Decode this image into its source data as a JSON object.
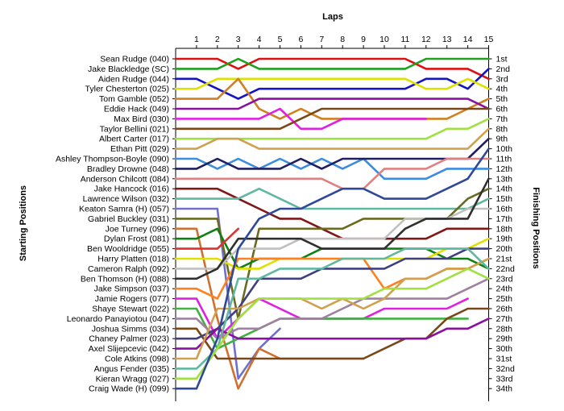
{
  "chart_data": {
    "type": "line",
    "title": "Laps",
    "ylabel_left": "Starting Positions",
    "ylabel_right": "Finishing Positions",
    "laps": [
      1,
      2,
      3,
      4,
      5,
      6,
      7,
      8,
      9,
      10,
      11,
      12,
      13,
      14,
      15
    ],
    "drivers": [
      "Sean Rudge (040)",
      "Jake Blackledge (SC)",
      "Aiden Rudge (044)",
      "Tyler Chesterton (025)",
      "Tom Gamble (052)",
      "Eddie Hack (049)",
      "Max Bird (030)",
      "Taylor Bellini (021)",
      "Albert Carter (017)",
      "Ethan Pitt (029)",
      "Ashley Thompson-Boyle (090)",
      "Bradley Drowne (048)",
      "Anderson Chilcott (084)",
      "Jake Hancock (016)",
      "Lawrence Wilson (032)",
      "Keaton Samra (H) (057)",
      "Gabriel Buckley (031)",
      "Joe Turney (096)",
      "Dylan Frost (081)",
      "Ben Wooldridge (055)",
      "Harry Platten (018)",
      "Cameron Ralph (092)",
      "Ben Thomson (H) (088)",
      "Jake Simpson (037)",
      "Jamie Rogers (077)",
      "Shaye Stewart (022)",
      "Leonardo Panayiotou (047)",
      "Joshua Simms (034)",
      "Chaney Palmer (023)",
      "Axel Slijepcevic (042)",
      "Cole Atkins (098)",
      "Angus Fender (035)",
      "Kieran Wragg (027)",
      "Craig Wade (H) (099)"
    ],
    "finishing_labels": [
      "1st",
      "2nd",
      "3rd",
      "4th",
      "5th",
      "6th",
      "7th",
      "8th",
      "9th",
      "10th",
      "11th",
      "12th",
      "13th",
      "14th",
      "15th",
      "16th",
      "17th",
      "18th",
      "19th",
      "20th",
      "21st",
      "22nd",
      "23rd",
      "24th",
      "25th",
      "26th",
      "27th",
      "28th",
      "29th",
      "30th",
      "31st",
      "32nd",
      "33rd",
      "34th"
    ],
    "series": [
      {
        "start": 1,
        "color": "#dd1010",
        "positions": [
          1,
          1,
          2,
          1,
          1,
          1,
          1,
          1,
          1,
          1,
          1,
          2,
          2,
          2,
          3
        ]
      },
      {
        "start": 2,
        "color": "#20a020",
        "positions": [
          2,
          2,
          1,
          2,
          2,
          2,
          2,
          2,
          2,
          2,
          2,
          1,
          1,
          1,
          1
        ]
      },
      {
        "start": 3,
        "color": "#1515c0",
        "positions": [
          3,
          4,
          5,
          4,
          4,
          4,
          4,
          4,
          4,
          4,
          4,
          3,
          3,
          4,
          2
        ]
      },
      {
        "start": 4,
        "color": "#e0e000",
        "positions": [
          4,
          3,
          3,
          3,
          3,
          3,
          3,
          3,
          3,
          3,
          3,
          4,
          4,
          3,
          4
        ]
      },
      {
        "start": 5,
        "color": "#d08020",
        "positions": [
          5,
          5,
          3,
          6,
          7,
          6,
          7,
          7,
          7,
          7,
          7,
          7,
          7,
          6,
          5
        ]
      },
      {
        "start": 6,
        "color": "#8a10a0",
        "positions": [
          6,
          6,
          6,
          5,
          5,
          5,
          5,
          5,
          5,
          5,
          5,
          5,
          5,
          5,
          6
        ]
      },
      {
        "start": 7,
        "color": "#e020e0",
        "positions": [
          7,
          7,
          7,
          7,
          6,
          8,
          8,
          7,
          7,
          7,
          7,
          7
        ]
      },
      {
        "start": 8,
        "color": "#7a4818",
        "positions": [
          8,
          8,
          8,
          8,
          8,
          7,
          6,
          6,
          6,
          6,
          6,
          6,
          6,
          6,
          6
        ]
      },
      {
        "start": 9,
        "color": "#a0e040",
        "positions": [
          9,
          9,
          9,
          9,
          9,
          9,
          9,
          9,
          9,
          9,
          9,
          9,
          8,
          8,
          7
        ]
      },
      {
        "start": 10,
        "color": "#d0a050",
        "positions": [
          10,
          9,
          9,
          10,
          10,
          10,
          10,
          10,
          10,
          10,
          10,
          10,
          10,
          10,
          8
        ]
      },
      {
        "start": 11,
        "color": "#3c8ce0",
        "positions": [
          11,
          12,
          11,
          12,
          11,
          12,
          11,
          12,
          11,
          13,
          13,
          13,
          12,
          12,
          12
        ]
      },
      {
        "start": 12,
        "color": "#202060",
        "positions": [
          12,
          11,
          12,
          12,
          12,
          11,
          12,
          11,
          11,
          11,
          11,
          11,
          11,
          11,
          9
        ]
      },
      {
        "start": 13,
        "color": "#e08080",
        "positions": [
          13,
          13,
          13,
          13,
          13,
          13,
          13,
          14,
          14,
          12,
          12,
          12,
          11,
          11,
          11
        ]
      },
      {
        "start": 14,
        "color": "#801818",
        "positions": [
          14,
          14,
          15,
          16,
          17,
          17,
          18,
          19,
          19,
          19,
          19,
          19,
          18,
          18,
          18
        ]
      },
      {
        "start": 15,
        "color": "#60b8a0",
        "positions": [
          15,
          15,
          15,
          14,
          15,
          16,
          16,
          16,
          16,
          16,
          16,
          16,
          16,
          16,
          15
        ]
      },
      {
        "start": 16,
        "color": "#7070d0",
        "positions": [
          16,
          16,
          33,
          30,
          28
        ]
      },
      {
        "start": 17,
        "color": "#6a6a20",
        "positions": [
          17,
          17,
          27,
          18,
          18,
          18,
          18,
          18,
          17,
          17,
          17,
          17,
          17,
          15,
          14
        ]
      },
      {
        "start": 18,
        "color": "#d07030",
        "positions": [
          18,
          27,
          34,
          30,
          31,
          31,
          31,
          31,
          31
        ]
      },
      {
        "start": 19,
        "color": "#108010",
        "positions": [
          19,
          18,
          22,
          21,
          21,
          21,
          20,
          20,
          20,
          20,
          20,
          20,
          21,
          21,
          22
        ]
      },
      {
        "start": 20,
        "color": "#e03030",
        "positions": [
          20,
          20,
          18
        ]
      },
      {
        "start": 21,
        "color": "#e0e000",
        "positions": [
          21,
          21,
          22,
          22,
          21,
          21,
          21,
          21,
          21,
          21,
          21,
          21,
          20,
          20,
          19
        ]
      },
      {
        "start": 22,
        "color": "#c0c0c0",
        "positions": [
          22,
          22,
          20,
          20,
          20,
          19,
          19,
          19,
          19,
          19,
          17,
          17,
          17,
          16,
          16
        ]
      },
      {
        "start": 23,
        "color": "#303030",
        "positions": [
          23,
          22,
          19,
          19,
          19,
          19,
          20,
          20,
          20,
          20,
          18,
          17,
          17,
          17,
          13
        ]
      },
      {
        "start": 24,
        "color": "#ff8020",
        "positions": [
          24,
          25,
          21,
          21,
          21,
          21,
          21,
          21,
          21,
          24,
          23,
          23,
          22,
          22,
          21
        ]
      },
      {
        "start": 25,
        "color": "#e020e0",
        "positions": [
          25,
          29,
          27,
          25,
          26,
          27,
          27,
          27,
          27,
          26,
          26,
          26,
          26,
          25
        ]
      },
      {
        "start": 26,
        "color": "#40b040",
        "positions": [
          26,
          30,
          29,
          28,
          27,
          27,
          27,
          27,
          27,
          27,
          27,
          27,
          27,
          27
        ]
      },
      {
        "start": 27,
        "color": "#a080a0",
        "positions": [
          27,
          29,
          28,
          28,
          27,
          27,
          27,
          26,
          25,
          25,
          25,
          25,
          25,
          24,
          23
        ]
      },
      {
        "start": 28,
        "color": "#7a4818",
        "positions": [
          28,
          31,
          31,
          31,
          31,
          31,
          31,
          31,
          31,
          30,
          29,
          29,
          27,
          26,
          26
        ]
      },
      {
        "start": 29,
        "color": "#404080",
        "positions": [
          29,
          28,
          26,
          23,
          23,
          23,
          22,
          22,
          22,
          22,
          21,
          21,
          21,
          20,
          20
        ]
      },
      {
        "start": 30,
        "color": "#8a10a0",
        "positions": [
          30,
          28,
          29,
          29,
          29,
          29,
          29,
          29,
          29,
          29,
          29,
          29,
          28,
          28,
          27
        ]
      },
      {
        "start": 31,
        "color": "#d0a050",
        "positions": [
          31,
          26,
          26,
          25,
          25,
          25,
          26,
          25,
          26,
          25,
          23,
          23,
          22,
          22,
          21
        ]
      },
      {
        "start": 32,
        "color": "#60b8a0",
        "positions": [
          32,
          30,
          23,
          23,
          22,
          22,
          22,
          21,
          21,
          21,
          20,
          20,
          20,
          20,
          22
        ]
      },
      {
        "start": 33,
        "color": "#a0e040",
        "positions": [
          33,
          30,
          27,
          25,
          25,
          25,
          25,
          25,
          25,
          24,
          24,
          24,
          23,
          22,
          23
        ]
      },
      {
        "start": 34,
        "color": "#304898",
        "positions": [
          34,
          29,
          20,
          17,
          16,
          16,
          15,
          14,
          14,
          15,
          15,
          15,
          14,
          13,
          10
        ]
      }
    ]
  }
}
